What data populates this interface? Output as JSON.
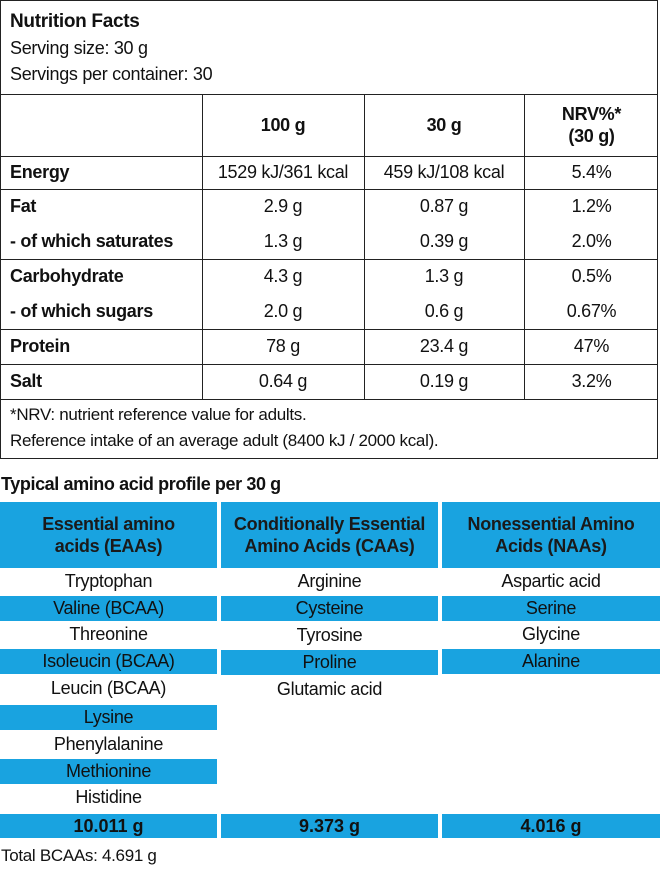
{
  "nutrition": {
    "title": "Nutrition Facts",
    "serving_size": "Serving size: 30 g",
    "servings_per_container": "Servings per container: 30",
    "headers": [
      "",
      "100 g",
      "30 g",
      "NRV%*",
      "(30 g)"
    ],
    "rows": [
      {
        "label": "Energy",
        "per100": "1529 kJ/361 kcal",
        "per30": "459 kJ/108 kcal",
        "nrv": "5.4%"
      },
      {
        "label": "Fat",
        "per100": "2.9 g",
        "per30": "0.87 g",
        "nrv": "1.2%"
      },
      {
        "label": "- of which saturates",
        "per100": "1.3 g",
        "per30": "0.39 g",
        "nrv": "2.0%"
      },
      {
        "label": "Carbohydrate",
        "per100": "4.3 g",
        "per30": "1.3 g",
        "nrv": "0.5%"
      },
      {
        "label": "- of which sugars",
        "per100": "2.0 g",
        "per30": "0.6 g",
        "nrv": "0.67%"
      },
      {
        "label": "Protein",
        "per100": "78 g",
        "per30": "23.4 g",
        "nrv": "47%"
      },
      {
        "label": "Salt",
        "per100": "0.64 g",
        "per30": "0.19 g",
        "nrv": "3.2%"
      }
    ],
    "footnote_1": "*NRV: nutrient reference value for adults.",
    "footnote_2": "Reference intake of an average adult (8400 kJ / 2000 kcal)."
  },
  "amino": {
    "title": "Typical amino acid profile per 30 g",
    "col_headers": [
      {
        "line1": "Essential amino",
        "line2": "acids (EAAs)"
      },
      {
        "line1": "Conditionally Essential",
        "line2": "Amino Acids (CAAs)"
      },
      {
        "line1": "Nonessential Amino",
        "line2": "Acids (NAAs)"
      }
    ],
    "essential": [
      "Tryptophan",
      "Valine (BCAA)",
      "Threonine",
      "Isoleucin (BCAA)",
      "Leucin (BCAA)",
      "Lysine",
      "Phenylalanine",
      "Methionine",
      "Histidine"
    ],
    "conditional": [
      "Arginine",
      "Cysteine",
      "Tyrosine",
      "Proline",
      "Glutamic acid"
    ],
    "nonessential": [
      "Aspartic acid",
      "Serine",
      "Glycine",
      "Alanine"
    ],
    "totals": [
      "10.011 g",
      "9.373 g",
      "4.016 g"
    ],
    "total_bcaa": "Total BCAAs: 4.691 g",
    "highlight_color": "#19a3e0"
  }
}
